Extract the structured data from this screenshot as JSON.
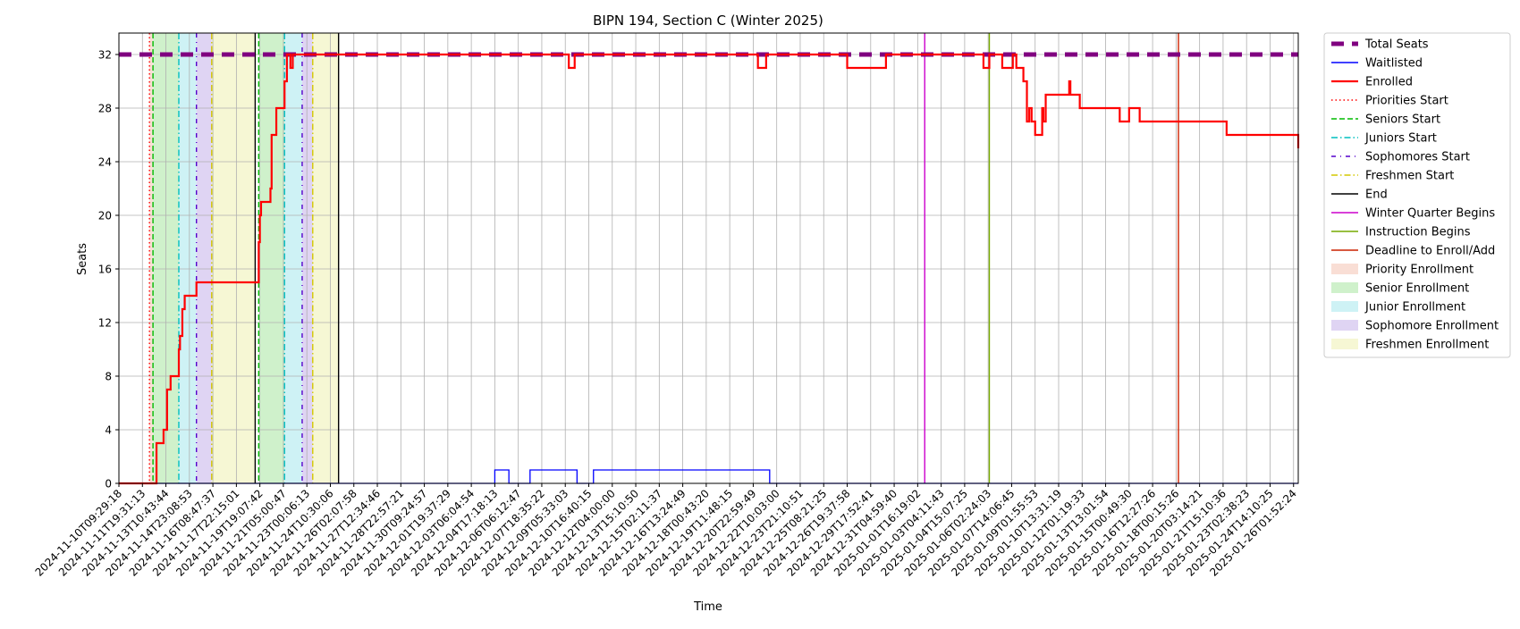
{
  "chart_data": {
    "type": "line",
    "title": "BIPN 194, Section C (Winter 2025)",
    "xlabel": "Time",
    "ylabel": "Seats",
    "ylim": [
      0,
      33.6
    ],
    "yticks": [
      0,
      4,
      8,
      12,
      16,
      20,
      24,
      28,
      32
    ],
    "x_categories": [
      "2024-11-10T09:29:18",
      "2024-11-11T19:31:13",
      "2024-11-13T10:43:44",
      "2024-11-14T23:08:53",
      "2024-11-16T08:47:37",
      "2024-11-17T22:15:01",
      "2024-11-19T19:07:42",
      "2024-11-21T05:00:47",
      "2024-11-23T00:06:13",
      "2024-11-24T10:30:06",
      "2024-11-26T02:07:58",
      "2024-11-27T12:34:46",
      "2024-11-28T22:57:21",
      "2024-11-30T09:24:57",
      "2024-12-01T19:37:29",
      "2024-12-03T06:04:54",
      "2024-12-04T17:18:13",
      "2024-12-06T06:12:47",
      "2024-12-07T18:35:22",
      "2024-12-09T05:33:03",
      "2024-12-10T16:40:15",
      "2024-12-12T04:00:00",
      "2024-12-13T15:10:50",
      "2024-12-15T02:11:37",
      "2024-12-16T13:24:49",
      "2024-12-18T00:43:20",
      "2024-12-19T11:48:15",
      "2024-12-20T22:59:49",
      "2024-12-22T10:03:00",
      "2024-12-23T21:10:51",
      "2024-12-25T08:21:25",
      "2024-12-26T19:37:58",
      "2024-12-29T17:52:41",
      "2024-12-31T04:59:40",
      "2025-01-01T16:19:02",
      "2025-01-03T04:11:43",
      "2025-01-04T15:07:25",
      "2025-01-06T02:24:03",
      "2025-01-07T14:06:45",
      "2025-01-09T01:55:53",
      "2025-01-10T13:31:19",
      "2025-01-12T01:19:33",
      "2025-01-13T13:01:54",
      "2025-01-15T00:49:30",
      "2025-01-16T12:27:26",
      "2025-01-18T00:15:26",
      "2025-01-20T03:14:21",
      "2025-01-21T15:10:36",
      "2025-01-23T02:38:23",
      "2025-01-24T14:10:25",
      "2025-01-26T01:52:24"
    ],
    "x_range": [
      0,
      50.2
    ],
    "series": [
      {
        "name": "Total Seats",
        "color": "#800080",
        "style": "thick-dashed",
        "points": [
          [
            0,
            32
          ],
          [
            50.2,
            32
          ]
        ]
      },
      {
        "name": "Waitlisted",
        "color": "#0000ff",
        "style": "solid",
        "points": [
          [
            0,
            0
          ],
          [
            16.0,
            0
          ],
          [
            16.0,
            1
          ],
          [
            16.6,
            1
          ],
          [
            16.6,
            0
          ],
          [
            17.5,
            0
          ],
          [
            17.5,
            1
          ],
          [
            19.5,
            1
          ],
          [
            19.5,
            0
          ],
          [
            20.2,
            0
          ],
          [
            20.2,
            1
          ],
          [
            27.7,
            1
          ],
          [
            27.7,
            0
          ],
          [
            50.2,
            0
          ]
        ]
      },
      {
        "name": "Enrolled",
        "color": "#ff0000",
        "style": "solid",
        "points": [
          [
            0,
            0
          ],
          [
            1.6,
            0
          ],
          [
            1.6,
            3
          ],
          [
            1.9,
            3
          ],
          [
            1.9,
            4
          ],
          [
            2.05,
            4
          ],
          [
            2.05,
            7
          ],
          [
            2.2,
            7
          ],
          [
            2.2,
            8
          ],
          [
            2.55,
            8
          ],
          [
            2.55,
            10
          ],
          [
            2.6,
            10
          ],
          [
            2.6,
            11
          ],
          [
            2.7,
            11
          ],
          [
            2.7,
            13
          ],
          [
            2.8,
            13
          ],
          [
            2.8,
            14
          ],
          [
            3.3,
            14
          ],
          [
            3.3,
            15
          ],
          [
            5.95,
            15
          ],
          [
            5.95,
            18
          ],
          [
            6.0,
            18
          ],
          [
            6.0,
            20
          ],
          [
            6.05,
            20
          ],
          [
            6.05,
            21
          ],
          [
            6.45,
            21
          ],
          [
            6.45,
            22
          ],
          [
            6.5,
            22
          ],
          [
            6.5,
            26
          ],
          [
            6.7,
            26
          ],
          [
            6.7,
            28
          ],
          [
            7.05,
            28
          ],
          [
            7.05,
            30
          ],
          [
            7.15,
            30
          ],
          [
            7.15,
            32
          ],
          [
            7.3,
            32
          ],
          [
            7.3,
            31
          ],
          [
            7.4,
            31
          ],
          [
            7.4,
            32
          ],
          [
            19.15,
            32
          ],
          [
            19.15,
            31
          ],
          [
            19.4,
            31
          ],
          [
            19.4,
            32
          ],
          [
            27.2,
            32
          ],
          [
            27.2,
            31
          ],
          [
            27.55,
            31
          ],
          [
            27.55,
            32
          ],
          [
            31.0,
            32
          ],
          [
            31.0,
            31
          ],
          [
            32.65,
            31
          ],
          [
            32.65,
            32
          ],
          [
            36.8,
            32
          ],
          [
            36.8,
            31
          ],
          [
            37.05,
            31
          ],
          [
            37.05,
            32
          ],
          [
            37.6,
            32
          ],
          [
            37.6,
            31
          ],
          [
            38.05,
            31
          ],
          [
            38.05,
            32
          ],
          [
            38.2,
            32
          ],
          [
            38.2,
            31
          ],
          [
            38.5,
            31
          ],
          [
            38.5,
            30
          ],
          [
            38.65,
            30
          ],
          [
            38.65,
            27
          ],
          [
            38.75,
            27
          ],
          [
            38.75,
            28
          ],
          [
            38.85,
            28
          ],
          [
            38.85,
            27
          ],
          [
            39.0,
            27
          ],
          [
            39.0,
            26
          ],
          [
            39.3,
            26
          ],
          [
            39.3,
            28
          ],
          [
            39.35,
            28
          ],
          [
            39.35,
            27
          ],
          [
            39.45,
            27
          ],
          [
            39.45,
            29
          ],
          [
            40.45,
            29
          ],
          [
            40.45,
            30
          ],
          [
            40.5,
            30
          ],
          [
            40.5,
            29
          ],
          [
            40.9,
            29
          ],
          [
            40.9,
            28
          ],
          [
            42.6,
            28
          ],
          [
            42.6,
            27
          ],
          [
            43.0,
            27
          ],
          [
            43.0,
            28
          ],
          [
            43.45,
            28
          ],
          [
            43.45,
            27
          ],
          [
            47.15,
            27
          ],
          [
            47.15,
            26
          ],
          [
            50.2,
            26
          ],
          [
            50.2,
            25
          ]
        ]
      }
    ],
    "vertical_lines": [
      {
        "name": "Priorities Start",
        "color": "#ff0000",
        "style": "dotted",
        "x": [
          1.3
        ]
      },
      {
        "name": "Seniors Start",
        "color": "#00bb00",
        "style": "dashed",
        "x": [
          1.45,
          5.95
        ]
      },
      {
        "name": "Juniors Start",
        "color": "#00bfbf",
        "style": "dashdot",
        "x": [
          2.55,
          7.05
        ]
      },
      {
        "name": "Sophomores Start",
        "color": "#5500cc",
        "style": "dashdotsparse",
        "x": [
          3.3,
          7.8
        ]
      },
      {
        "name": "Freshmen Start",
        "color": "#d4c800",
        "style": "dashdot",
        "x": [
          3.95,
          8.25
        ]
      },
      {
        "name": "End",
        "color": "#000000",
        "style": "solid",
        "x": [
          5.8,
          9.35
        ]
      },
      {
        "name": "Winter Quarter Begins",
        "color": "#cc00cc",
        "style": "solid",
        "x": [
          34.3
        ]
      },
      {
        "name": "Instruction Begins",
        "color": "#77aa00",
        "style": "solid",
        "x": [
          37.05
        ]
      },
      {
        "name": "Deadline to Enroll/Add",
        "color": "#cc2200",
        "style": "solid",
        "x": [
          45.1
        ]
      }
    ],
    "shaded_periods": [
      {
        "name": "Priority Enrollment",
        "color": "#f4c2b2",
        "from": 1.3,
        "to": 1.45
      },
      {
        "name": "Senior Enrollment",
        "color": "#a8e6a0",
        "from": 1.45,
        "to": 2.55
      },
      {
        "name": "Junior Enrollment",
        "color": "#a6e8ec",
        "from": 2.55,
        "to": 3.3
      },
      {
        "name": "Sophomore Enrollment",
        "color": "#c4b0ea",
        "from": 3.3,
        "to": 3.95
      },
      {
        "name": "Freshmen Enrollment",
        "color": "#eef0b0",
        "from": 3.95,
        "to": 5.8
      },
      {
        "name": "Senior Enrollment",
        "color": "#a8e6a0",
        "from": 5.95,
        "to": 7.05
      },
      {
        "name": "Junior Enrollment",
        "color": "#a6e8ec",
        "from": 7.05,
        "to": 7.8
      },
      {
        "name": "Sophomore Enrollment",
        "color": "#c4b0ea",
        "from": 7.8,
        "to": 8.25
      },
      {
        "name": "Freshmen Enrollment",
        "color": "#eef0b0",
        "from": 8.25,
        "to": 9.35
      }
    ],
    "legend": {
      "placement": "outside-right-top",
      "entries": [
        {
          "label": "Total Seats",
          "color": "#800080",
          "kind": "thick"
        },
        {
          "label": "Waitlisted",
          "color": "#0000ff",
          "kind": "solid"
        },
        {
          "label": "Enrolled",
          "color": "#ff0000",
          "kind": "solid2"
        },
        {
          "label": "Priorities Start",
          "color": "#ff0000",
          "kind": "dotted"
        },
        {
          "label": "Seniors Start",
          "color": "#00bb00",
          "kind": "dashed"
        },
        {
          "label": "Juniors Start",
          "color": "#00bfbf",
          "kind": "dashdot"
        },
        {
          "label": "Sophomores Start",
          "color": "#5500cc",
          "kind": "dashdotsparse"
        },
        {
          "label": "Freshmen Start",
          "color": "#d4c800",
          "kind": "dashdot"
        },
        {
          "label": "End",
          "color": "#000000",
          "kind": "solid"
        },
        {
          "label": "Winter Quarter Begins",
          "color": "#cc00cc",
          "kind": "solid"
        },
        {
          "label": "Instruction Begins",
          "color": "#77aa00",
          "kind": "solid"
        },
        {
          "label": "Deadline to Enroll/Add",
          "color": "#cc2200",
          "kind": "solid"
        },
        {
          "label": "Priority Enrollment",
          "color": "#f4c2b2",
          "kind": "patch"
        },
        {
          "label": "Senior Enrollment",
          "color": "#a8e6a0",
          "kind": "patch"
        },
        {
          "label": "Junior Enrollment",
          "color": "#a6e8ec",
          "kind": "patch"
        },
        {
          "label": "Sophomore Enrollment",
          "color": "#c4b0ea",
          "kind": "patch"
        },
        {
          "label": "Freshmen Enrollment",
          "color": "#eef0b0",
          "kind": "patch"
        }
      ]
    },
    "grid": true
  }
}
